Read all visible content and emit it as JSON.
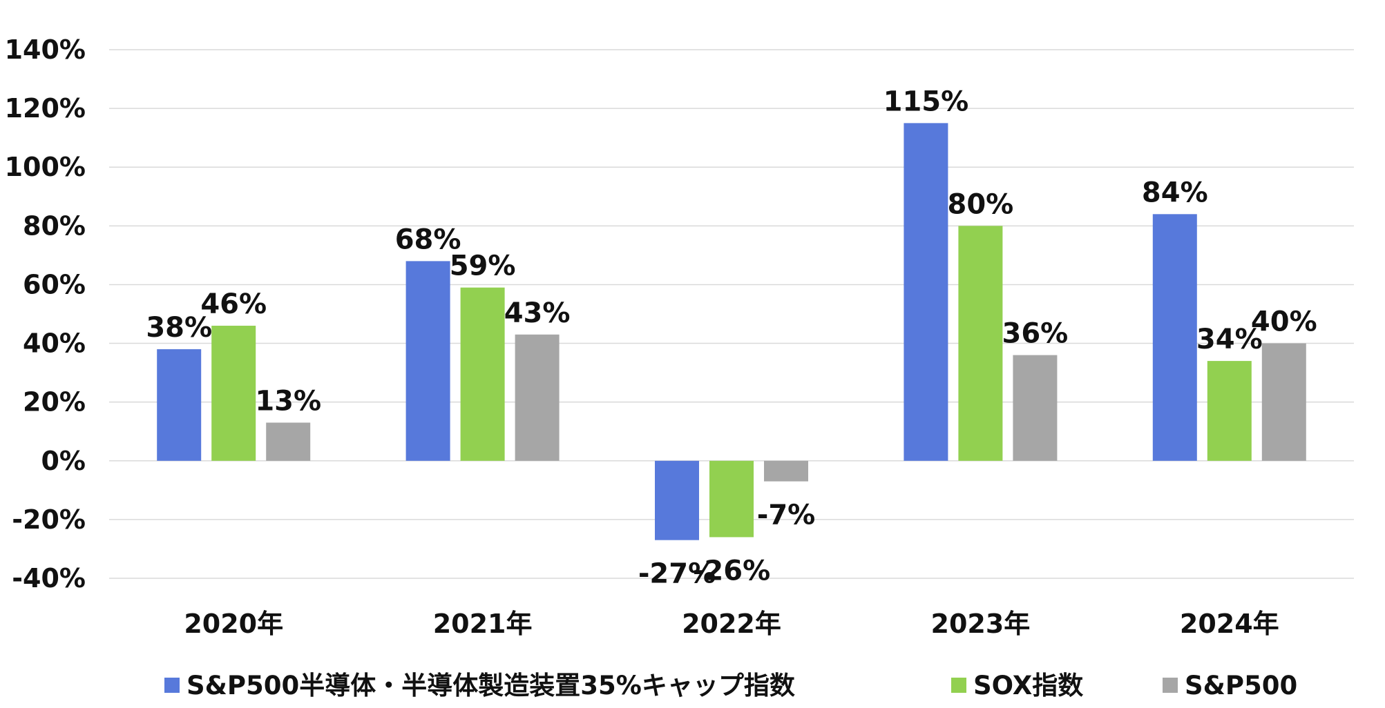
{
  "chart_data": {
    "type": "bar",
    "categories": [
      "2020年",
      "2021年",
      "2022年",
      "2023年",
      "2024年"
    ],
    "series": [
      {
        "name": "S&P500半導体・半導体製造装置35%キャップ指数",
        "color": "#5779db",
        "values": [
          38,
          68,
          -27,
          115,
          84
        ],
        "labels": [
          "38%",
          "68%",
          "-27%",
          "115%",
          "84%"
        ]
      },
      {
        "name": "SOX指数",
        "color": "#92d050",
        "values": [
          46,
          59,
          -26,
          80,
          34
        ],
        "labels": [
          "46%",
          "59%",
          "-26%",
          "80%",
          "34%"
        ]
      },
      {
        "name": "S&P500",
        "color": "#a6a6a6",
        "values": [
          13,
          43,
          -7,
          36,
          40
        ],
        "labels": [
          "13%",
          "43%",
          "-7%",
          "36%",
          "40%"
        ]
      }
    ],
    "ylim": [
      -40,
      140
    ],
    "yticks": [
      140,
      120,
      100,
      80,
      60,
      40,
      20,
      0,
      -20,
      -40
    ],
    "ytick_labels": [
      "140%",
      "120%",
      "100%",
      "80%",
      "60%",
      "40%",
      "20%",
      "0%",
      "-20%",
      "-40%"
    ],
    "grid": true,
    "legend_position": "bottom",
    "title": "",
    "xlabel": "",
    "ylabel": ""
  }
}
